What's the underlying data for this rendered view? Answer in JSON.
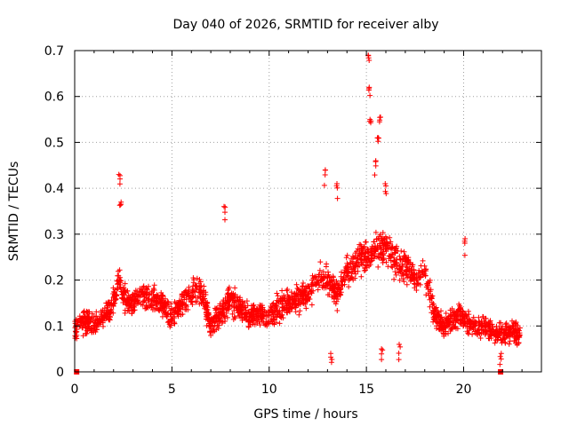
{
  "chart_data": {
    "type": "scatter",
    "title": "Day 040 of 2026, SRMTID for receiver alby",
    "xlabel": "GPS time / hours",
    "ylabel": "SRMTID / TECUs",
    "xlim": [
      0,
      24
    ],
    "ylim": [
      0,
      0.7
    ],
    "xticks": [
      0,
      5,
      10,
      15,
      20
    ],
    "xtick_labels": [
      "0",
      "5",
      "10",
      "15",
      "20"
    ],
    "yticks": [
      0,
      0.1,
      0.2,
      0.3,
      0.4,
      0.5,
      0.6,
      0.7
    ],
    "ytick_labels": [
      "0",
      "0.1",
      "0.2",
      "0.3",
      "0.4",
      "0.5",
      "0.6",
      "0.7"
    ],
    "grid": true,
    "marker": "plus",
    "color": "#ff0000",
    "series": [
      {
        "name": "SRMTID",
        "trend": {
          "x": [
            0,
            0.5,
            1,
            1.5,
            2,
            2.3,
            2.6,
            3,
            3.5,
            4,
            4.5,
            5,
            5.5,
            6,
            6.5,
            7,
            7.5,
            8,
            8.5,
            9,
            9.5,
            10,
            10.5,
            11,
            11.5,
            12,
            12.5,
            13,
            13.5,
            14,
            14.5,
            15,
            15.5,
            16,
            16.5,
            17,
            17.5,
            18,
            18.5,
            19,
            19.5,
            20,
            20.5,
            21,
            21.5,
            22,
            22.5,
            22.9
          ],
          "y": [
            0.09,
            0.11,
            0.1,
            0.12,
            0.15,
            0.2,
            0.16,
            0.15,
            0.17,
            0.16,
            0.15,
            0.12,
            0.15,
            0.17,
            0.18,
            0.1,
            0.13,
            0.16,
            0.14,
            0.12,
            0.13,
            0.12,
            0.14,
            0.15,
            0.16,
            0.17,
            0.2,
            0.2,
            0.17,
            0.22,
            0.24,
            0.25,
            0.27,
            0.27,
            0.24,
            0.23,
            0.2,
            0.22,
            0.12,
            0.1,
            0.12,
            0.12,
            0.1,
            0.1,
            0.09,
            0.08,
            0.09,
            0.08
          ]
        },
        "peaks": [
          {
            "x": 2.3,
            "y": 0.43
          },
          {
            "x": 2.35,
            "y": 0.37
          },
          {
            "x": 7.7,
            "y": 0.36
          },
          {
            "x": 12.85,
            "y": 0.44
          },
          {
            "x": 13.5,
            "y": 0.41
          },
          {
            "x": 15.1,
            "y": 0.69
          },
          {
            "x": 15.15,
            "y": 0.62
          },
          {
            "x": 15.2,
            "y": 0.55
          },
          {
            "x": 15.7,
            "y": 0.555
          },
          {
            "x": 15.6,
            "y": 0.51
          },
          {
            "x": 15.45,
            "y": 0.46
          },
          {
            "x": 16.0,
            "y": 0.41
          },
          {
            "x": 20.05,
            "y": 0.29
          },
          {
            "x": 15.8,
            "y": 0.05
          },
          {
            "x": 16.7,
            "y": 0.06
          },
          {
            "x": 13.2,
            "y": 0.04
          },
          {
            "x": 21.9,
            "y": 0.04
          }
        ],
        "points_per_hour": 100,
        "scatter_spread": 0.05
      }
    ],
    "markers_at_zero": [
      0.1,
      21.9
    ]
  }
}
